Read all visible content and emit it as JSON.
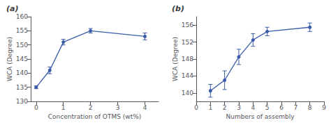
{
  "chart_data": [
    {
      "type": "line",
      "title": "(a)",
      "x": [
        0,
        0.5,
        1,
        2,
        4
      ],
      "values": [
        135,
        141,
        151,
        155,
        153
      ],
      "errors": [
        0.5,
        1.2,
        1.0,
        0.8,
        1.2
      ],
      "xlabel": "Concentration of OTMS (wt%)",
      "ylabel": "WCA (Degree)",
      "xlim": [
        -0.2,
        4.5
      ],
      "ylim": [
        130,
        160
      ],
      "xticks": [
        0,
        1,
        2,
        3,
        4
      ],
      "yticks": [
        130,
        135,
        140,
        145,
        150,
        155,
        160
      ],
      "color": "#3a5ca8",
      "marker": "circle",
      "grid": false
    },
    {
      "type": "line",
      "title": "(b)",
      "x": [
        1,
        2,
        3,
        4,
        5,
        8
      ],
      "values": [
        140.5,
        143,
        148.5,
        152.5,
        154.5,
        155.5
      ],
      "errors": [
        1.5,
        2.2,
        1.8,
        1.5,
        1.0,
        1.0
      ],
      "xlabel": "Numbers of assembly",
      "ylabel": "WCA (Degree)",
      "xlim": [
        0,
        9
      ],
      "ylim": [
        138,
        158
      ],
      "xticks": [
        0,
        1,
        2,
        3,
        4,
        5,
        6,
        7,
        8,
        9
      ],
      "yticks": [
        140,
        144,
        148,
        152,
        156
      ],
      "color": "#3a5ca8",
      "marker": "circle",
      "grid": false
    }
  ]
}
